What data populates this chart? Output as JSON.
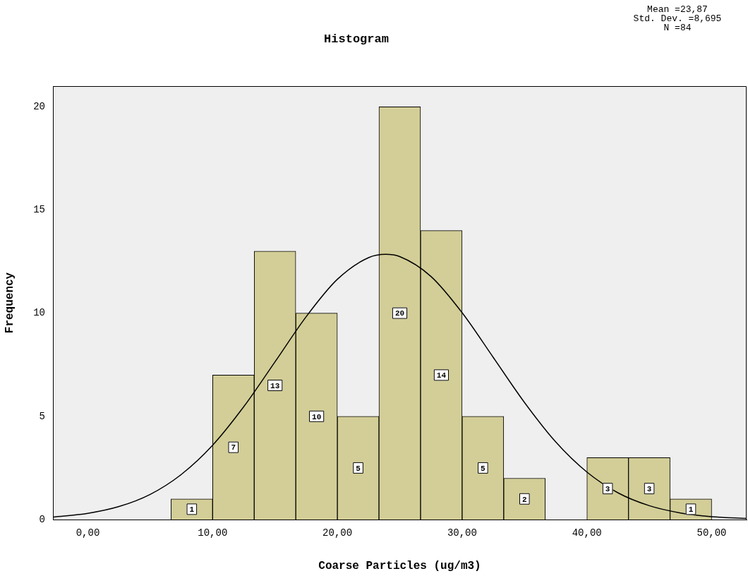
{
  "chart_data": {
    "type": "histogram",
    "title": "Histogram",
    "xlabel": "Coarse Particles (ug/m3)",
    "ylabel": "Frequency",
    "bins": [
      6.667,
      10,
      13.333,
      16.667,
      20,
      23.333,
      26.667,
      30,
      33.333,
      36.667,
      40,
      43.333,
      46.667,
      50
    ],
    "values": [
      1,
      7,
      13,
      10,
      5,
      20,
      14,
      5,
      2,
      0,
      3,
      3,
      1
    ],
    "value_labels": [
      "1",
      "7",
      "13",
      "10",
      "5",
      "20",
      "14",
      "5",
      "2",
      null,
      "3",
      "3",
      "1"
    ],
    "color": "#d3ce97",
    "series": [
      {
        "type": "line",
        "color": "#000000",
        "x": [
          -2.8,
          0,
          2.5,
          5,
          7.5,
          10,
          12.5,
          15,
          17.5,
          20,
          22.5,
          23.87,
          25,
          27.5,
          30,
          32.5,
          35,
          37.5,
          40,
          42.5,
          45,
          47.5,
          50,
          52.8
        ],
        "values": [
          0.12,
          0.3,
          0.63,
          1.22,
          2.19,
          3.6,
          5.47,
          7.64,
          9.83,
          11.64,
          12.69,
          12.85,
          12.74,
          11.78,
          10.02,
          7.85,
          5.67,
          3.76,
          2.3,
          1.29,
          0.67,
          0.32,
          0.14,
          0.05
        ]
      }
    ],
    "xlim": [
      -2.8,
      52.8
    ],
    "ylim": [
      0,
      21
    ],
    "xticks": [
      {
        "value": 0,
        "label": "0,00"
      },
      {
        "value": 10,
        "label": "10,00"
      },
      {
        "value": 20,
        "label": "20,00"
      },
      {
        "value": 30,
        "label": "30,00"
      },
      {
        "value": 40,
        "label": "40,00"
      },
      {
        "value": 50,
        "label": "50,00"
      }
    ],
    "yticks": [
      0,
      5,
      10,
      15,
      20
    ],
    "annotations": [
      "Mean =23,87",
      "Std. Dev. =8,695",
      "N =84"
    ]
  }
}
